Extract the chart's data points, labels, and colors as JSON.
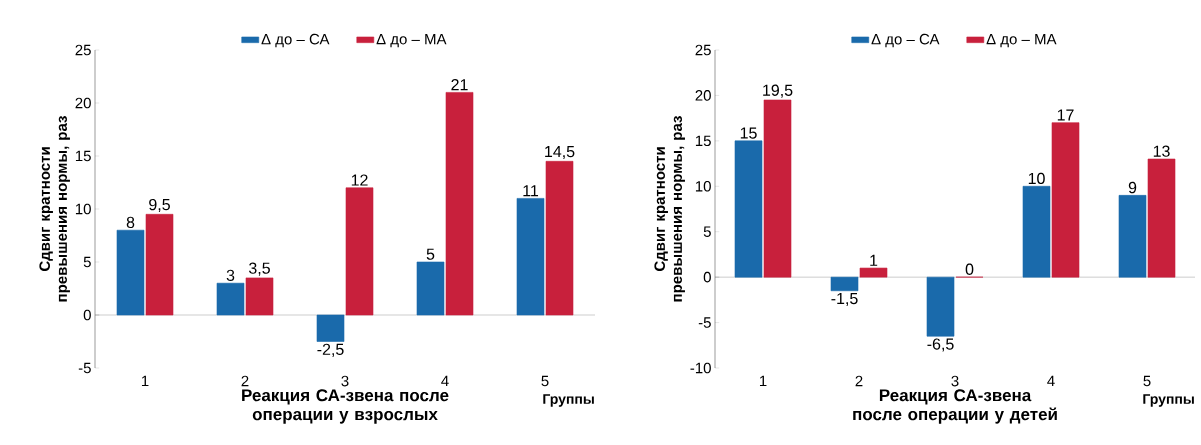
{
  "chart_data": [
    {
      "type": "bar",
      "xlabel": "Реакция СА-звена после операции у взрослых",
      "ylabel": "Сдвиг кратности превышения нормы, раз",
      "categories": [
        "1",
        "2",
        "3",
        "4",
        "5"
      ],
      "series": [
        {
          "name": "Δ до – СА",
          "color": "#1a6aab",
          "values": [
            8,
            3,
            -2.5,
            5,
            11
          ],
          "value_labels": [
            "8",
            "3",
            "-2,5",
            "5",
            "11"
          ]
        },
        {
          "name": "Δ до – МА",
          "color": "#c8203c",
          "values": [
            9.5,
            3.5,
            12,
            21,
            14.5
          ],
          "value_labels": [
            "9,5",
            "3,5",
            "12",
            "21",
            "14,5"
          ]
        }
      ],
      "ylim": [
        -5,
        25
      ],
      "yticks": [
        -5,
        0,
        5,
        10,
        15,
        20,
        25
      ],
      "legend": "top",
      "annotations": [
        "Группы"
      ]
    },
    {
      "type": "bar",
      "xlabel": "Реакция СА-звена после операции у детей",
      "ylabel": "Сдвиг кратности превышения нормы, раз",
      "categories": [
        "1",
        "2",
        "3",
        "4",
        "5"
      ],
      "series": [
        {
          "name": "Δ до – СА",
          "color": "#1a6aab",
          "values": [
            15,
            -1.5,
            -6.5,
            10,
            9
          ],
          "value_labels": [
            "15",
            "-1,5",
            "-6,5",
            "10",
            "9"
          ]
        },
        {
          "name": "Δ до – МА",
          "color": "#c8203c",
          "values": [
            19.5,
            1,
            0,
            17,
            13
          ],
          "value_labels": [
            "19,5",
            "1",
            "0",
            "17",
            "13"
          ]
        }
      ],
      "ylim": [
        -10,
        25
      ],
      "yticks": [
        -10,
        -5,
        0,
        5,
        10,
        15,
        20,
        25
      ],
      "legend": "top",
      "annotations": [
        "Группы"
      ]
    }
  ]
}
